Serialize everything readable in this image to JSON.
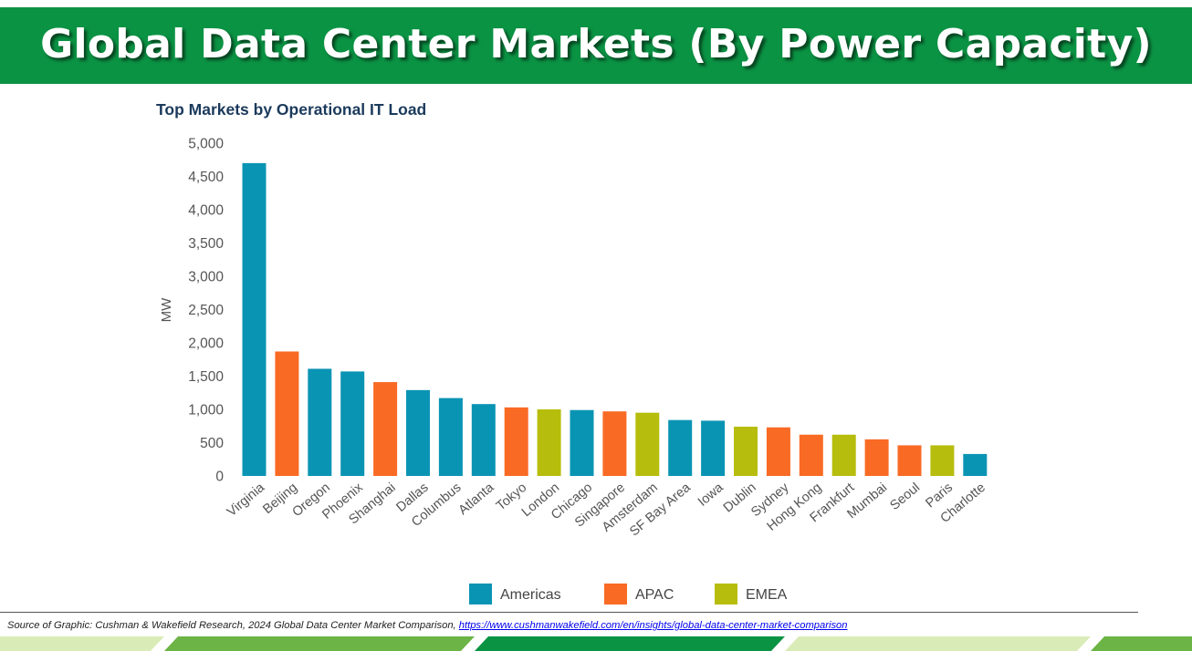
{
  "header": {
    "title": "Global Data Center Markets (By Power Capacity)"
  },
  "colors": {
    "header_bg": "#0b9344",
    "Americas": "#0a94b4",
    "APAC": "#f96a24",
    "EMEA": "#b6bd0c",
    "axis_text": "#555555",
    "title_text": "#1b3a5c"
  },
  "chart_data": {
    "type": "bar",
    "title": "Top Markets by Operational IT Load",
    "xlabel": "",
    "ylabel": "MW",
    "ylim": [
      0,
      5000
    ],
    "yticks": [
      0,
      500,
      1000,
      1500,
      2000,
      2500,
      3000,
      3500,
      4000,
      4500,
      5000
    ],
    "ytick_labels": [
      "0",
      "500",
      "1,000",
      "1,500",
      "2,000",
      "2,500",
      "3,000",
      "3,500",
      "4,000",
      "4,500",
      "5,000"
    ],
    "grid": false,
    "legend": [
      "Americas",
      "APAC",
      "EMEA"
    ],
    "legend_position": "bottom",
    "categories": [
      "Virginia",
      "Beijing",
      "Oregon",
      "Phoenix",
      "Shanghai",
      "Dallas",
      "Columbus",
      "Atlanta",
      "Tokyo",
      "London",
      "Chicago",
      "Singapore",
      "Amsterdam",
      "SF Bay Area",
      "Iowa",
      "Dublin",
      "Sydney",
      "Hong Kong",
      "Frankfurt",
      "Mumbai",
      "Seoul",
      "Paris",
      "Charlotte"
    ],
    "values": [
      4700,
      1870,
      1610,
      1570,
      1410,
      1290,
      1170,
      1080,
      1030,
      1000,
      990,
      970,
      950,
      840,
      830,
      740,
      730,
      620,
      620,
      550,
      460,
      460,
      330
    ],
    "regions": [
      "Americas",
      "APAC",
      "Americas",
      "Americas",
      "APAC",
      "Americas",
      "Americas",
      "Americas",
      "APAC",
      "EMEA",
      "Americas",
      "APAC",
      "EMEA",
      "Americas",
      "Americas",
      "EMEA",
      "APAC",
      "APAC",
      "EMEA",
      "APAC",
      "APAC",
      "EMEA",
      "Americas"
    ]
  },
  "source": {
    "text": "Source of Graphic: Cushman & Wakefield Research, 2024 Global Data Center Market Comparison, ",
    "link": "https://www.cushmanwakefield.com/en/insights/global-data-center-market-comparison"
  }
}
